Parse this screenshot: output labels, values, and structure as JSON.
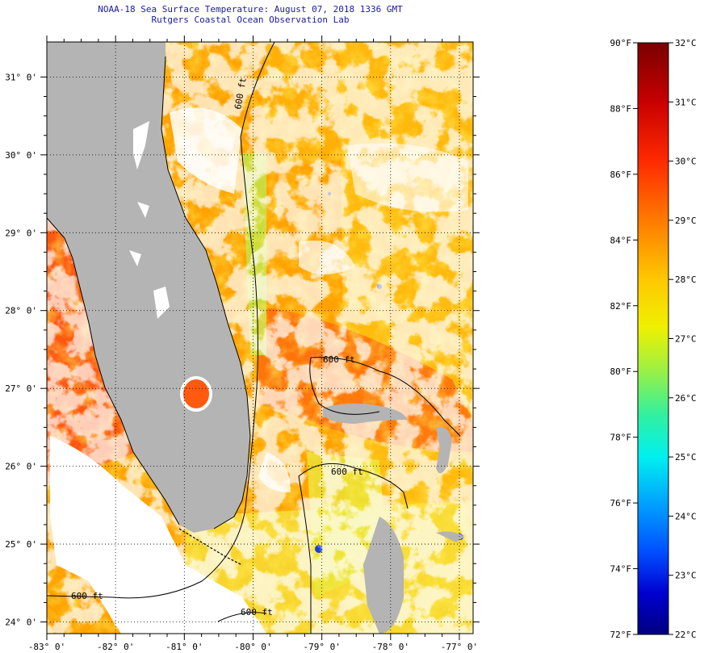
{
  "title": {
    "line1": "NOAA-18 Sea Surface Temperature:  August 07, 2018 1336 GMT",
    "line2": "Rutgers Coastal Ocean Observation Lab"
  },
  "map": {
    "lat_labels": [
      "31° 0'",
      "30° 0'",
      "29° 0'",
      "28° 0'",
      "27° 0'",
      "26° 0'",
      "25° 0'",
      "24° 0'"
    ],
    "lon_labels": [
      "-83° 0'",
      "-82° 0'",
      "-81° 0'",
      "-80° 0'",
      "-79° 0'",
      "-78° 0'",
      "-77° 0'"
    ],
    "lat_range": [
      23.85,
      31.45
    ],
    "lon_range": [
      -83.0,
      -76.8
    ],
    "isobath_label": "600 ft",
    "colors": {
      "land": "#b4b4b4",
      "cloud": "#ffffff",
      "ocean_warm": "#ff9a00",
      "ocean_hot": "#ff4a10",
      "ocean_mid": "#ffd21a",
      "ocean_cool": "#d8ee30",
      "ocean_green": "#9af26a",
      "ocean_cold": "#1a3cd8"
    }
  },
  "colorbar": {
    "f_labels": [
      "90°F",
      "88°F",
      "86°F",
      "84°F",
      "82°F",
      "80°F",
      "78°F",
      "76°F",
      "74°F",
      "72°F"
    ],
    "c_labels": [
      "32°C",
      "31°C",
      "30°C",
      "29°C",
      "28°C",
      "27°C",
      "26°C",
      "25°C",
      "24°C",
      "23°C",
      "22°C"
    ],
    "f_range": [
      72,
      90
    ],
    "c_range": [
      22,
      32
    ]
  }
}
